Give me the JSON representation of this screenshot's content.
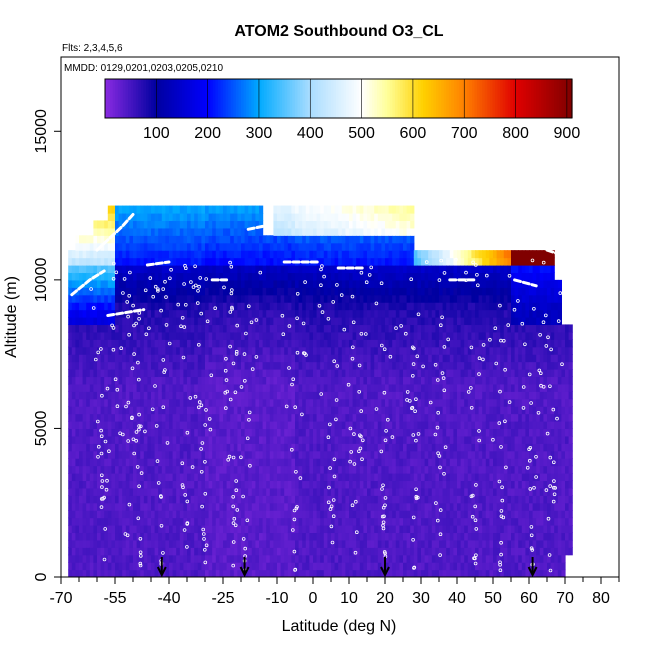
{
  "chart_data": {
    "type": "heatmap",
    "title": "ATOM2 Southbound O3_CL",
    "subtitle_flights": "Flts: 2,3,4,5,6",
    "subtitle_dates": "MMDD: 0129,0201,0203,0205,0210",
    "xlabel": "Latitude (deg N)",
    "ylabel": "Altitude (m)",
    "xlim": [
      -70,
      85
    ],
    "ylim": [
      0,
      17500
    ],
    "x_ticks": [
      -70,
      -55,
      -40,
      -25,
      -10,
      0,
      10,
      20,
      30,
      40,
      50,
      60,
      70,
      80
    ],
    "x_tick_labels": [
      "-70",
      "-55",
      "-40",
      "-25",
      "-10",
      "0",
      "10",
      "20",
      "30",
      "40",
      "50",
      "60",
      "70",
      "80"
    ],
    "y_ticks": [
      0,
      5000,
      10000,
      15000
    ],
    "y_tick_labels": [
      "0",
      "5000",
      "10000",
      "15000"
    ],
    "colorbar": {
      "range": [
        0,
        910
      ],
      "ticks": [
        100,
        200,
        300,
        400,
        500,
        600,
        700,
        800,
        900
      ],
      "tick_labels": [
        "100",
        "200",
        "300",
        "400",
        "500",
        "600",
        "700",
        "800",
        "900"
      ],
      "stops": [
        {
          "value": 0,
          "color": "#8a2be2"
        },
        {
          "value": 100,
          "color": "#0000a0"
        },
        {
          "value": 200,
          "color": "#0000ff"
        },
        {
          "value": 300,
          "color": "#00aaff"
        },
        {
          "value": 400,
          "color": "#aaddff"
        },
        {
          "value": 500,
          "color": "#ffffff"
        },
        {
          "value": 550,
          "color": "#ffff99"
        },
        {
          "value": 620,
          "color": "#ffd000"
        },
        {
          "value": 700,
          "color": "#ff8000"
        },
        {
          "value": 800,
          "color": "#e00000"
        },
        {
          "value": 910,
          "color": "#800000"
        }
      ]
    },
    "flight_profile_latitudes": [
      -42,
      -19,
      20,
      61
    ],
    "approx_field": [
      {
        "lat_range": [
          -68,
          -12
        ],
        "alt_range": [
          0,
          7000
        ],
        "o3": 35
      },
      {
        "lat_range": [
          -12,
          70
        ],
        "alt_range": [
          0,
          7000
        ],
        "o3": 40
      },
      {
        "lat_range": [
          -68,
          70
        ],
        "alt_range": [
          7000,
          10000
        ],
        "o3": 70
      },
      {
        "lat_range": [
          -68,
          -55
        ],
        "alt_range": [
          9000,
          11000
        ],
        "o3": 250
      },
      {
        "lat_range": [
          -10,
          28
        ],
        "alt_range": [
          11500,
          12000
        ],
        "o3": 300
      },
      {
        "lat_range": [
          40,
          70
        ],
        "alt_range": [
          10500,
          11000
        ],
        "o3": 650
      }
    ]
  }
}
